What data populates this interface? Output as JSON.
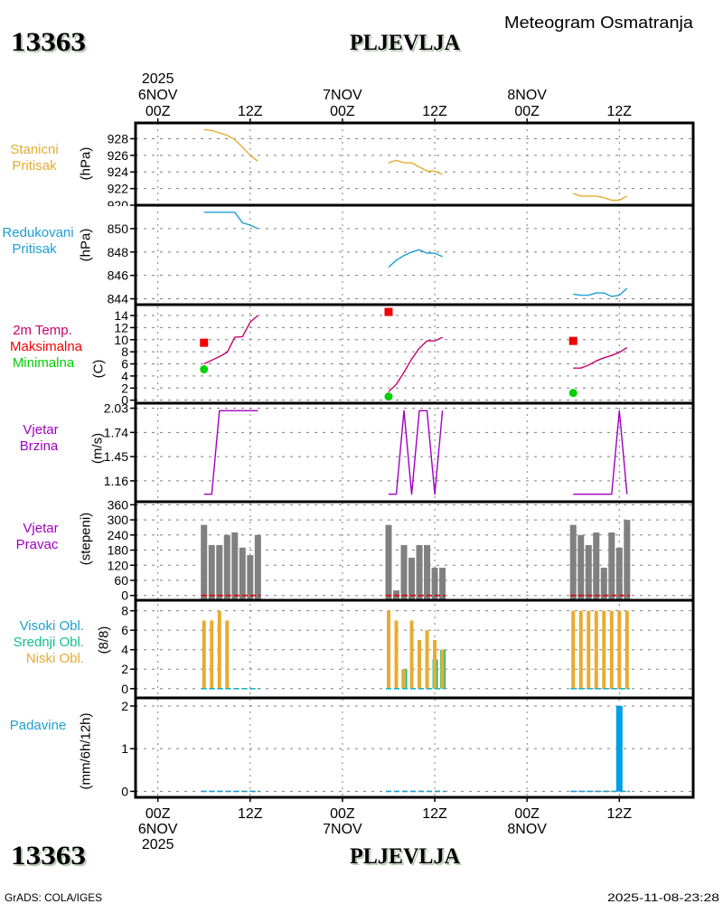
{
  "header": {
    "station_id": "13363",
    "station_name": "PLJEVLJA",
    "product_title": "Meteogram Osmatranja"
  },
  "footer": {
    "station_id": "13363",
    "station_name": "PLJEVLJA",
    "software_credit": "GrADS: COLA/IGES",
    "generated_timestamp": "2025-11-08-23:28"
  },
  "time_axis": {
    "unit": "hours since 00Z 6NOV2025",
    "xlim": [
      -2.9,
      69.6
    ],
    "ticks": [
      {
        "hour": 0,
        "time": "00Z",
        "date": "6NOV",
        "year": "2025"
      },
      {
        "hour": 12,
        "time": "12Z"
      },
      {
        "hour": 24,
        "time": "00Z",
        "date": "7NOV"
      },
      {
        "hour": 36,
        "time": "12Z"
      },
      {
        "hour": 48,
        "time": "00Z",
        "date": "8NOV"
      },
      {
        "hour": 60,
        "time": "12Z"
      }
    ],
    "observation_hours": [
      6,
      7,
      8,
      9,
      10,
      11,
      12,
      13,
      30,
      31,
      32,
      33,
      34,
      35,
      36,
      37,
      54,
      55,
      56,
      57,
      58,
      59,
      60,
      61
    ]
  },
  "chart_data": [
    {
      "id": "station-pressure",
      "type": "line",
      "labels": [
        {
          "text": "Stanicni",
          "color": "#e6ac32"
        },
        {
          "text": "Pritisak",
          "color": "#e6ac32"
        }
      ],
      "ylabel": "(hPa)",
      "ylim": [
        920,
        929.9
      ],
      "yticks": [
        920,
        922,
        924,
        926,
        928
      ],
      "ytick_labels": [
        "920",
        "922",
        "924",
        "926",
        "928"
      ],
      "grid": true,
      "series": [
        {
          "key": "station-pressure",
          "name": "Stanicni Pritisak",
          "kind": "line",
          "color": "#e6ac32",
          "values": [
            929.1,
            929.0,
            928.7,
            928.4,
            927.9,
            927.0,
            926.0,
            925.3,
            925.1,
            925.4,
            925.1,
            925.1,
            924.6,
            924.1,
            924.1,
            923.7,
            921.4,
            921.1,
            921.1,
            921.1,
            920.9,
            920.6,
            920.6,
            921.1
          ]
        }
      ]
    },
    {
      "id": "reduced-pressure",
      "type": "line",
      "labels": [
        {
          "text": "Redukovani",
          "color": "#1e9fd4"
        },
        {
          "text": "Pritisak",
          "color": "#1e9fd4"
        }
      ],
      "ylabel": "(hPa)",
      "ylim": [
        843.5,
        852.0
      ],
      "yticks": [
        844,
        846,
        848,
        850
      ],
      "ytick_labels": [
        "844",
        "846",
        "848",
        "850"
      ],
      "grid": true,
      "series": [
        {
          "key": "reduced-pressure",
          "name": "Redukovani Pritisak",
          "kind": "line",
          "color": "#1e9fd4",
          "values": [
            851.4,
            851.4,
            851.4,
            851.4,
            851.4,
            850.5,
            850.3,
            850.0,
            846.7,
            847.3,
            847.7,
            848.0,
            848.2,
            847.9,
            847.9,
            847.6,
            844.4,
            844.3,
            844.3,
            844.5,
            844.5,
            844.2,
            844.3,
            844.9
          ]
        }
      ]
    },
    {
      "id": "temperature",
      "type": "line",
      "labels": [
        {
          "text": "2m Temp.",
          "color": "#c8006e"
        },
        {
          "text": "Maksimalna",
          "color": "#f00000"
        },
        {
          "text": "Minimalna",
          "color": "#00d000"
        }
      ],
      "ylabel": "(C)",
      "ylim": [
        -0.5,
        15.8
      ],
      "yticks": [
        0,
        2,
        4,
        6,
        8,
        10,
        12,
        14
      ],
      "ytick_labels": [
        "0",
        "2",
        "4",
        "6",
        "8",
        "10",
        "12",
        "14"
      ],
      "grid": true,
      "series": [
        {
          "key": "temperature-2m",
          "name": "2m Temp.",
          "kind": "line",
          "color": "#c8006e",
          "values": [
            6.0,
            6.6,
            7.2,
            7.9,
            10.4,
            10.5,
            12.9,
            14.0,
            1.4,
            2.6,
            4.6,
            6.8,
            8.6,
            9.8,
            9.8,
            10.4,
            5.3,
            5.3,
            5.8,
            6.5,
            7.0,
            7.4,
            7.9,
            8.7
          ]
        },
        {
          "key": "temperature-max",
          "name": "Maksimalna",
          "kind": "marker",
          "shape": "square",
          "color": "#f00000",
          "points": [
            {
              "hour": 6,
              "value": 9.5
            },
            {
              "hour": 30,
              "value": 14.6
            },
            {
              "hour": 54,
              "value": 9.8
            }
          ]
        },
        {
          "key": "temperature-min",
          "name": "Minimalna",
          "kind": "marker",
          "shape": "circle",
          "color": "#00d000",
          "points": [
            {
              "hour": 6,
              "value": 5.1
            },
            {
              "hour": 30,
              "value": 0.6
            },
            {
              "hour": 54,
              "value": 1.2
            }
          ]
        }
      ]
    },
    {
      "id": "wind-speed",
      "type": "line",
      "labels": [
        {
          "text": "Vjetar",
          "color": "#a000c0"
        },
        {
          "text": "Brzina",
          "color": "#a000c0"
        }
      ],
      "ylabel": "(m/s)",
      "ylim": [
        0.91,
        2.09
      ],
      "yticks": [
        1.16,
        1.45,
        1.74,
        2.03
      ],
      "ytick_labels": [
        "1.16",
        "1.45",
        "1.74",
        "2.03"
      ],
      "grid": true,
      "series": [
        {
          "key": "wind-speed",
          "name": "Vjetar Brzina",
          "kind": "line",
          "color": "#a000c0",
          "values": [
            1.0,
            1.0,
            2.0,
            2.0,
            2.0,
            2.0,
            2.0,
            2.0,
            1.0,
            1.0,
            2.0,
            1.0,
            2.0,
            2.0,
            1.0,
            2.0,
            1.0,
            1.0,
            1.0,
            1.0,
            1.0,
            1.0,
            2.0,
            1.0
          ]
        }
      ]
    },
    {
      "id": "wind-direction",
      "type": "bar",
      "labels": [
        {
          "text": "Vjetar",
          "color": "#a000c0"
        },
        {
          "text": "Pravac",
          "color": "#a000c0"
        }
      ],
      "ylabel": "(stepeni)",
      "ylim": [
        -19,
        372
      ],
      "yticks": [
        0,
        60,
        120,
        180,
        240,
        300,
        360
      ],
      "ytick_labels": [
        "0",
        "60",
        "120",
        "180",
        "240",
        "300",
        "360"
      ],
      "grid": true,
      "series": [
        {
          "key": "wind-direction",
          "name": "Vjetar Pravac",
          "kind": "bar",
          "color": "#808080",
          "values": [
            280,
            200,
            200,
            240,
            250,
            190,
            160,
            240,
            280,
            20,
            200,
            150,
            200,
            200,
            110,
            110,
            280,
            240,
            200,
            250,
            110,
            250,
            190,
            300
          ]
        },
        {
          "key": "wind-direction-zero",
          "name": "zero reference",
          "kind": "baseline",
          "value": 0,
          "color": "#e00000"
        }
      ]
    },
    {
      "id": "cloud-cover",
      "type": "bar",
      "labels": [
        {
          "text": "Visoki Obl.",
          "color": "#1e9fd4"
        },
        {
          "text": "Srednji Obl.",
          "color": "#14c08c"
        },
        {
          "text": "Niski Obl.",
          "color": "#e6ac32"
        }
      ],
      "ylabel": "(8/8)",
      "ylim": [
        -0.95,
        9.08
      ],
      "yticks": [
        0,
        2,
        4,
        6,
        8
      ],
      "ytick_labels": [
        "0",
        "2",
        "4",
        "6",
        "8"
      ],
      "grid": true,
      "series": [
        {
          "key": "high-cloud",
          "name": "Visoki Obl.",
          "kind": "bar",
          "base_value": 0,
          "color": "#1e9fd4",
          "values": [
            0,
            0,
            0,
            0,
            0,
            0,
            0,
            0,
            0,
            0,
            0,
            0,
            0,
            0,
            0,
            0,
            0,
            0,
            0,
            0,
            0,
            0,
            0,
            0
          ]
        },
        {
          "key": "mid-cloud",
          "name": "Srednji Obl.",
          "kind": "bar",
          "base_value": 0,
          "color": "#14c08c",
          "values": [
            0,
            0,
            0,
            0,
            0,
            0,
            0,
            0,
            0,
            0,
            2,
            0,
            0,
            0,
            3,
            4,
            0,
            0,
            0,
            0,
            0,
            0,
            0,
            0
          ]
        },
        {
          "key": "low-cloud",
          "name": "Niski Obl.",
          "kind": "bar",
          "base_value": 0,
          "color": "#e6ac32",
          "values": [
            7,
            7,
            8,
            7,
            0,
            0,
            0,
            0,
            8,
            7,
            2,
            7,
            5,
            6,
            5,
            4,
            8,
            8,
            8,
            8,
            8,
            8,
            8,
            8
          ]
        },
        {
          "key": "cloud-zero",
          "name": "zero reference",
          "kind": "baseline",
          "value": 0,
          "color": "#20b4c8"
        }
      ]
    },
    {
      "id": "precipitation",
      "type": "bar",
      "labels": [
        {
          "text": "Padavine",
          "color": "#1e9fd4"
        }
      ],
      "ylabel": "(mm/6h/12h)",
      "ylim": [
        -0.14,
        2.19
      ],
      "yticks": [
        0,
        1,
        2
      ],
      "ytick_labels": [
        "0",
        "1",
        "2"
      ],
      "grid": true,
      "series": [
        {
          "key": "precipitation",
          "name": "Padavine",
          "kind": "bar",
          "base_value": 0,
          "color": "#00a0e6",
          "values": [
            0,
            0,
            0,
            0,
            0,
            0,
            0,
            0,
            0,
            0,
            0,
            0,
            0,
            0,
            0,
            0,
            0,
            0,
            0,
            0,
            0,
            0,
            2.0,
            0
          ]
        },
        {
          "key": "precipitation-zero",
          "name": "zero reference",
          "kind": "baseline",
          "value": 0,
          "color": "#1e9fd4"
        }
      ]
    }
  ]
}
